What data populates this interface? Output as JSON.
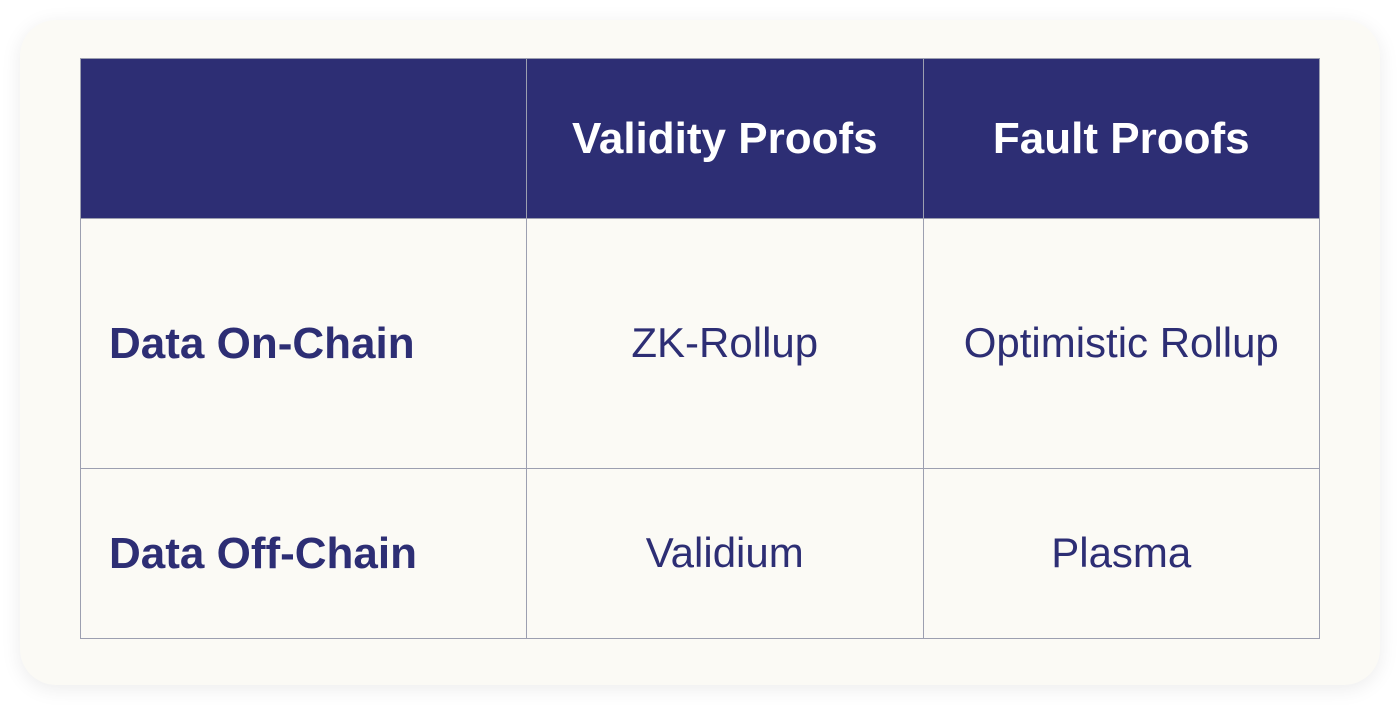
{
  "table": {
    "type": "table",
    "background_color": "#fbfaf5",
    "border_color": "#9c9fb0",
    "header_bg_color": "#2d2e74",
    "header_text_color": "#ffffff",
    "body_text_color": "#2d2e74",
    "header_fontsize": 44,
    "body_fontsize": 42,
    "row_label_fontsize": 44,
    "columns": [
      "",
      "Validity Proofs",
      "Fault Proofs"
    ],
    "rows": [
      {
        "label": "Data On-Chain",
        "cells": [
          "ZK-Rollup",
          "Optimistic Rollup"
        ]
      },
      {
        "label": "Data Off-Chain",
        "cells": [
          "Validium",
          "Plasma"
        ]
      }
    ],
    "column_widths_pct": [
      36,
      32,
      32
    ]
  }
}
